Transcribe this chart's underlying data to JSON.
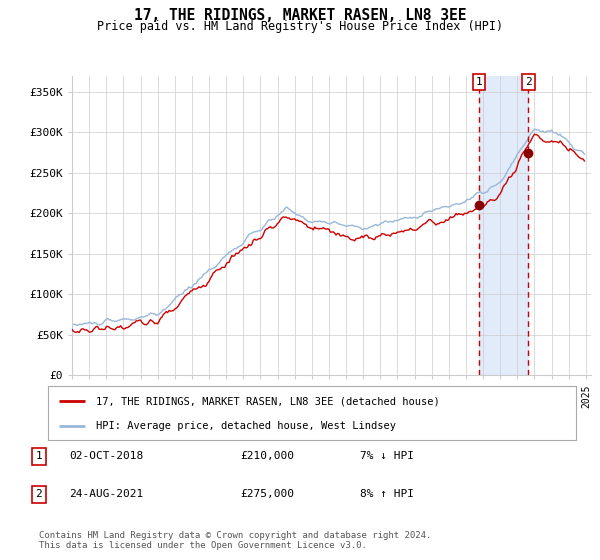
{
  "title": "17, THE RIDINGS, MARKET RASEN, LN8 3EE",
  "subtitle": "Price paid vs. HM Land Registry's House Price Index (HPI)",
  "x_start_year": 1995,
  "x_end_year": 2025,
  "ylim": [
    0,
    370000
  ],
  "yticks": [
    0,
    50000,
    100000,
    150000,
    200000,
    250000,
    300000,
    350000
  ],
  "ytick_labels": [
    "£0",
    "£50K",
    "£100K",
    "£150K",
    "£200K",
    "£250K",
    "£300K",
    "£350K"
  ],
  "sale1_date": "02-OCT-2018",
  "sale1_price": 210000,
  "sale1_pct": "7% ↓ HPI",
  "sale1_year": 2018.75,
  "sale2_date": "24-AUG-2021",
  "sale2_price": 275000,
  "sale2_pct": "8% ↑ HPI",
  "sale2_year": 2021.65,
  "legend_label_red": "17, THE RIDINGS, MARKET RASEN, LN8 3EE (detached house)",
  "legend_label_blue": "HPI: Average price, detached house, West Lindsey",
  "footer": "Contains HM Land Registry data © Crown copyright and database right 2024.\nThis data is licensed under the Open Government Licence v3.0.",
  "chart_bg": "#ffffff",
  "grid_color": "#cccccc",
  "red_color": "#cc0000",
  "blue_color": "#99b8d8",
  "shade_color": "#dce8f8",
  "dashed_color": "#cc0000"
}
